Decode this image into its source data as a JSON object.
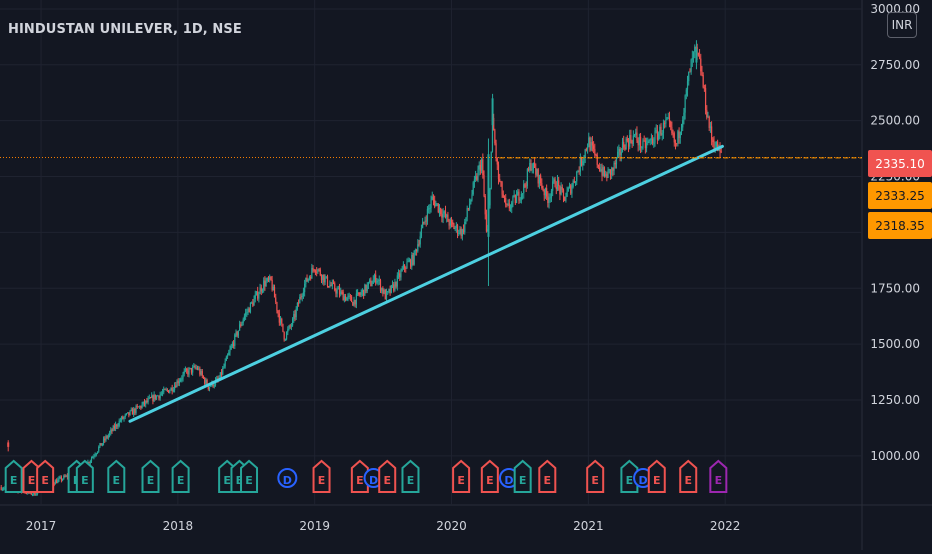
{
  "header": {
    "title": "HINDUSTAN UNILEVER, 1D, NSE",
    "currency": "INR"
  },
  "colors": {
    "background": "#131722",
    "grid": "#1f2330",
    "text": "#d1d4dc",
    "up": "#26a69a",
    "down": "#ef5350",
    "trendline": "#4dd0e1",
    "last_price_line": "#f57c00",
    "last_price_tag": "#f05350",
    "tag_orange": "#ff9800",
    "event_split": "#2962ff",
    "event_future": "#9c27b0"
  },
  "chart_data": {
    "type": "candlestick",
    "y_ticks": [
      "3000.00",
      "2750.00",
      "2500.00",
      "2250.00",
      "2000.00",
      "1750.00",
      "1500.00",
      "1250.00",
      "1000.00"
    ],
    "y_tick_values": [
      3000,
      2750,
      2500,
      2250,
      2000,
      1750,
      1500,
      1250,
      1000
    ],
    "ylim": [
      780,
      3040
    ],
    "x_ticks": [
      "2017",
      "2018",
      "2019",
      "2020",
      "2021",
      "2022"
    ],
    "x_tick_years": [
      2017.0,
      2018.0,
      2019.0,
      2020.0,
      2021.0,
      2022.0
    ],
    "xlim": [
      2016.7,
      2023.0
    ],
    "price_tags": [
      {
        "label": "2335.10",
        "value": 2335.1,
        "kind": "last"
      },
      {
        "label": "2333.25",
        "value": 2333.25,
        "kind": "orange"
      },
      {
        "label": "2318.35",
        "value": 2318.35,
        "kind": "orange"
      }
    ],
    "trendline": {
      "from": [
        2017.65,
        1155
      ],
      "to": [
        2021.98,
        2385
      ]
    },
    "price_path": [
      [
        2016.7,
        860
      ],
      [
        2016.85,
        845
      ],
      [
        2016.95,
        830
      ],
      [
        2017.05,
        870
      ],
      [
        2017.18,
        905
      ],
      [
        2017.32,
        950
      ],
      [
        2017.45,
        1060
      ],
      [
        2017.58,
        1160
      ],
      [
        2017.7,
        1210
      ],
      [
        2017.82,
        1260
      ],
      [
        2017.95,
        1300
      ],
      [
        2018.05,
        1370
      ],
      [
        2018.14,
        1395
      ],
      [
        2018.22,
        1310
      ],
      [
        2018.3,
        1340
      ],
      [
        2018.4,
        1500
      ],
      [
        2018.48,
        1620
      ],
      [
        2018.56,
        1700
      ],
      [
        2018.63,
        1775
      ],
      [
        2018.68,
        1780
      ],
      [
        2018.74,
        1620
      ],
      [
        2018.78,
        1530
      ],
      [
        2018.84,
        1600
      ],
      [
        2018.92,
        1760
      ],
      [
        2019.0,
        1850
      ],
      [
        2019.1,
        1770
      ],
      [
        2019.2,
        1720
      ],
      [
        2019.28,
        1690
      ],
      [
        2019.36,
        1740
      ],
      [
        2019.45,
        1800
      ],
      [
        2019.52,
        1710
      ],
      [
        2019.58,
        1760
      ],
      [
        2019.66,
        1850
      ],
      [
        2019.72,
        1880
      ],
      [
        2019.8,
        2050
      ],
      [
        2019.86,
        2150
      ],
      [
        2019.93,
        2090
      ],
      [
        2020.0,
        2030
      ],
      [
        2020.08,
        2000
      ],
      [
        2020.16,
        2200
      ],
      [
        2020.22,
        2320
      ],
      [
        2020.26,
        1950
      ],
      [
        2020.28,
        2200
      ],
      [
        2020.3,
        2500
      ],
      [
        2020.34,
        2250
      ],
      [
        2020.4,
        2100
      ],
      [
        2020.47,
        2150
      ],
      [
        2020.53,
        2200
      ],
      [
        2020.58,
        2310
      ],
      [
        2020.64,
        2240
      ],
      [
        2020.7,
        2150
      ],
      [
        2020.76,
        2230
      ],
      [
        2020.82,
        2150
      ],
      [
        2020.88,
        2210
      ],
      [
        2020.95,
        2320
      ],
      [
        2021.0,
        2410
      ],
      [
        2021.06,
        2320
      ],
      [
        2021.12,
        2250
      ],
      [
        2021.18,
        2280
      ],
      [
        2021.26,
        2400
      ],
      [
        2021.34,
        2430
      ],
      [
        2021.4,
        2380
      ],
      [
        2021.46,
        2410
      ],
      [
        2021.52,
        2450
      ],
      [
        2021.58,
        2490
      ],
      [
        2021.64,
        2380
      ],
      [
        2021.7,
        2560
      ],
      [
        2021.74,
        2720
      ],
      [
        2021.78,
        2810
      ],
      [
        2021.82,
        2740
      ],
      [
        2021.86,
        2560
      ],
      [
        2021.9,
        2420
      ],
      [
        2021.95,
        2370
      ],
      [
        2021.98,
        2335
      ]
    ],
    "key_marks": [
      {
        "x": 2016.76,
        "open": 1060,
        "close": 1040,
        "high": 1070,
        "low": 1020
      },
      {
        "x": 2020.27,
        "open": 1980,
        "close": 2350,
        "high": 2420,
        "low": 1760
      },
      {
        "x": 2020.3,
        "open": 2480,
        "close": 2600,
        "high": 2620,
        "low": 2400
      },
      {
        "x": 2021.79,
        "open": 2760,
        "close": 2820,
        "high": 2860,
        "low": 2730
      }
    ],
    "events": [
      {
        "x": 2016.8,
        "label": "E",
        "kind": "up"
      },
      {
        "x": 2016.93,
        "label": "E",
        "kind": "down"
      },
      {
        "x": 2017.03,
        "label": "E",
        "kind": "down"
      },
      {
        "x": 2017.26,
        "label": "E",
        "kind": "up"
      },
      {
        "x": 2017.32,
        "label": "E",
        "kind": "up"
      },
      {
        "x": 2017.55,
        "label": "E",
        "kind": "up"
      },
      {
        "x": 2017.8,
        "label": "E",
        "kind": "up"
      },
      {
        "x": 2018.02,
        "label": "E",
        "kind": "up"
      },
      {
        "x": 2018.36,
        "label": "E",
        "kind": "up"
      },
      {
        "x": 2018.45,
        "label": "E",
        "kind": "up"
      },
      {
        "x": 2018.52,
        "label": "E",
        "kind": "up"
      },
      {
        "x": 2018.8,
        "label": "D",
        "kind": "split"
      },
      {
        "x": 2019.05,
        "label": "E",
        "kind": "down"
      },
      {
        "x": 2019.33,
        "label": "E",
        "kind": "down"
      },
      {
        "x": 2019.43,
        "label": "D",
        "kind": "split"
      },
      {
        "x": 2019.53,
        "label": "E",
        "kind": "down"
      },
      {
        "x": 2019.7,
        "label": "E",
        "kind": "up"
      },
      {
        "x": 2020.07,
        "label": "E",
        "kind": "down"
      },
      {
        "x": 2020.28,
        "label": "E",
        "kind": "down"
      },
      {
        "x": 2020.42,
        "label": "D",
        "kind": "split"
      },
      {
        "x": 2020.52,
        "label": "E",
        "kind": "up"
      },
      {
        "x": 2020.7,
        "label": "E",
        "kind": "down"
      },
      {
        "x": 2021.05,
        "label": "E",
        "kind": "down"
      },
      {
        "x": 2021.3,
        "label": "E",
        "kind": "up"
      },
      {
        "x": 2021.4,
        "label": "D",
        "kind": "split"
      },
      {
        "x": 2021.5,
        "label": "E",
        "kind": "down"
      },
      {
        "x": 2021.73,
        "label": "E",
        "kind": "down"
      },
      {
        "x": 2021.95,
        "label": "E",
        "kind": "future"
      }
    ]
  }
}
